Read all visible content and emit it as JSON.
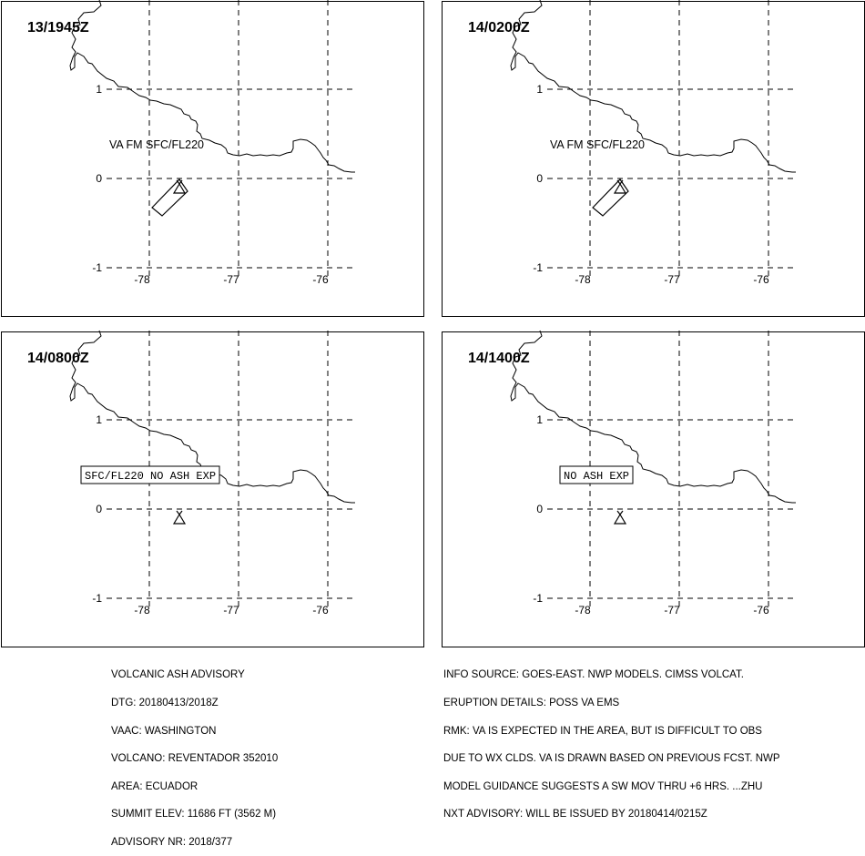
{
  "panels": [
    {
      "time": "13/1945Z",
      "label": "VA FM SFC/FL220",
      "label_boxed": false,
      "has_cloud": true,
      "y_ticks": [
        "1",
        "0",
        "-1"
      ],
      "x_ticks": [
        "-78",
        "-77",
        "-76"
      ]
    },
    {
      "time": "14/0200Z",
      "label": "VA FM SFC/FL220",
      "label_boxed": false,
      "has_cloud": true,
      "y_ticks": [
        "1",
        "0",
        "-1"
      ],
      "x_ticks": [
        "-78",
        "-77",
        "-76"
      ]
    },
    {
      "time": "14/0800Z",
      "label": "SFC/FL220 NO ASH EXP",
      "label_boxed": true,
      "has_cloud": false,
      "y_ticks": [
        "1",
        "0",
        "-1"
      ],
      "x_ticks": [
        "-78",
        "-77",
        "-76"
      ]
    },
    {
      "time": "14/1400Z",
      "label": "NO ASH EXP",
      "label_boxed": true,
      "has_cloud": false,
      "y_ticks": [
        "1",
        "0",
        "-1"
      ],
      "x_ticks": [
        "-78",
        "-77",
        "-76"
      ]
    }
  ],
  "advisory_left": [
    "VOLCANIC ASH ADVISORY",
    "DTG: 20180413/2018Z",
    "VAAC: WASHINGTON",
    "VOLCANO: REVENTADOR 352010",
    "AREA: ECUADOR",
    "SUMMIT ELEV: 11686 FT (3562 M)",
    "ADVISORY NR: 2018/377"
  ],
  "advisory_right": [
    "INFO SOURCE: GOES-EAST. NWP MODELS. CIMSS VOLCAT.",
    "ERUPTION DETAILS: POSS VA EMS",
    "RMK: VA IS EXPECTED IN THE AREA, BUT IS DIFFICULT TO OBS",
    "DUE TO WX CLDS. VA IS DRAWN BASED ON PREVIOUS FCST. NWP",
    "MODEL GUIDANCE SUGGESTS A SW MOV THRU +6 HRS. ...ZHU",
    "NXT ADVISORY: WILL BE ISSUED BY 20180414/0215Z"
  ],
  "colors": {
    "line": "#000000",
    "background": "#ffffff"
  },
  "icons": {
    "volcano": "volcano-triangle-icon"
  }
}
